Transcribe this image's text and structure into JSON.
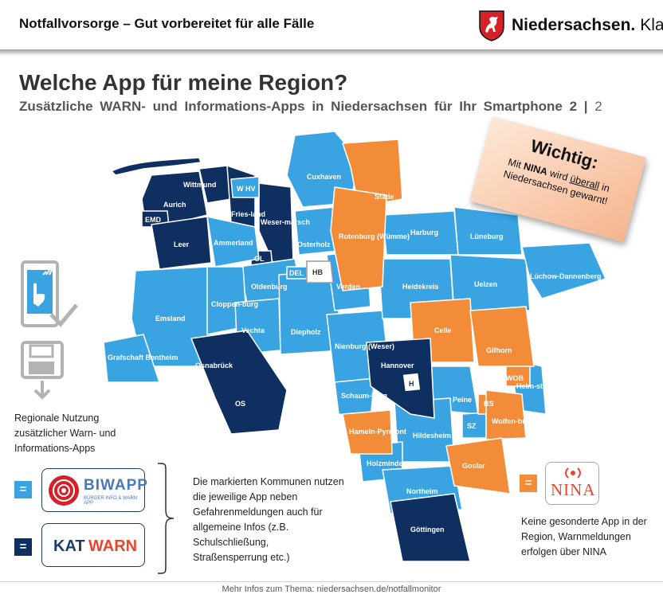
{
  "header": {
    "title": "Notfallvorsorge – Gut vorbereitet für alle Fälle",
    "brand": "Niedersachsen.",
    "brand_suffix": "Klar."
  },
  "heading": {
    "title": "Welche App für meine Region?",
    "subtitle": "Zusätzliche WARN- und Informations-Apps in Niedersachsen für Ihr Smartphone 2 |",
    "page": "2"
  },
  "colors": {
    "light": "#3aa3e2",
    "dark": "#0e2f5f",
    "orange": "#f28c38"
  },
  "icons": [
    "smartphone-touch-icon",
    "save-disk-icon"
  ],
  "legend": {
    "text": "Regionale Nutzung zusätzlicher Warn- und Informations-Apps",
    "eq": "="
  },
  "apps": {
    "biwapp": {
      "name": "BIWAPP",
      "tagline": "BÜRGER INFO & WARN APP"
    },
    "katwarn": {
      "name_a": "KAT",
      "name_b": "WARN"
    },
    "nina": {
      "name": "NINA"
    }
  },
  "description": "Die markierten Kommunen nutzen die jeweilige App neben Gefahrenmeldungen auch für allgemeine Infos (z.B. Schulschließung, Straßensperrung etc.)",
  "nina_description": "Keine gesonderte App in der Region, Warnmeldungen erfolgen über NINA",
  "wichtig": {
    "title": "Wichtig:",
    "line_pre": "Mit",
    "nina": "NINA",
    "line_mid": "wird",
    "ueberall": "überall",
    "line_post": "in",
    "line2": "Niedersachsen gewarnt!"
  },
  "regions": {
    "wittmund": "Wittmund",
    "aurich": "Aurich",
    "emd": "EMD",
    "whv": "W HV",
    "friesland": "Fries-land",
    "wesermarsch": "Weser-marsch",
    "cuxhaven": "Cuxhaven",
    "stade": "Stade",
    "leer": "Leer",
    "ammerland": "Ammerland",
    "ol": "OL",
    "osterholz": "Osterholz",
    "rotenburg": "Rotenburg (Wümme)",
    "harburg": "Harburg",
    "lueneburg": "Lüneburg",
    "del": "DEL",
    "hb": "HB",
    "oldenburg": "Oldenburg",
    "verden": "Verden",
    "heidekreis": "Heidekreis",
    "uelzen": "Uelzen",
    "luechow": "Lüchow-Dannenberg",
    "emsland": "Emsland",
    "cloppenburg": "Cloppen-burg",
    "vechta": "Vechta",
    "diepholz": "Diepholz",
    "celle": "Celle",
    "gifhorn": "Gifhorn",
    "grafschaft": "Grafschaft Bentheim",
    "osnabrueck": "Osnabrück",
    "nienburg": "Nienburg (Weser)",
    "hannover": "Hannover",
    "h": "H",
    "wob": "WOB",
    "helmstedt": "Helm-stedt",
    "os": "OS",
    "schaumburg": "Schaum-burg",
    "peine": "Peine",
    "bs": "BS",
    "wolfenbuettel": "Wolfen-büttel",
    "sz": "SZ",
    "hameln": "Hameln-Pyrmont",
    "hildesheim": "Hildesheim",
    "holzminden": "Holzminden",
    "goslar": "Goslar",
    "northeim": "Northeim",
    "goettingen": "Göttingen"
  },
  "footer": "Mehr Infos zum Thema: niedersachsen.de/notfallmonitor"
}
